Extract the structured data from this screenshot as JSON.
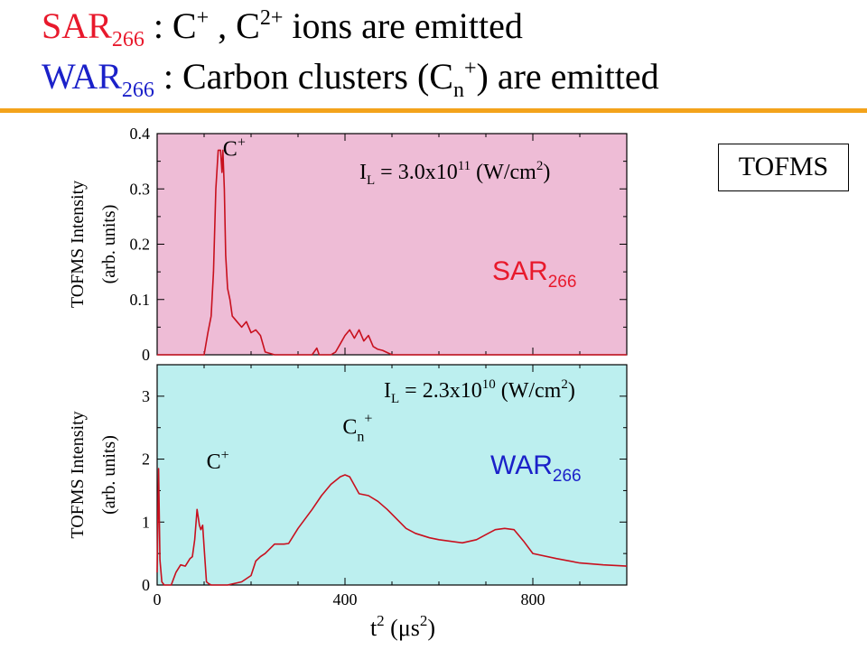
{
  "header": {
    "line1": {
      "label": "SAR",
      "sub": "266",
      "rest": " :  C",
      "sup1": "+",
      "mid": " , C",
      "sup2": "2+",
      "tail": " ions are emitted"
    },
    "line2": {
      "label": "WAR",
      "sub": "266",
      "rest": "  :  Carbon clusters (C",
      "subn": "n",
      "sup": "+",
      "tail": ") are emitted"
    }
  },
  "badge": "TOFMS",
  "colors": {
    "sar": "#e8192c",
    "war": "#1b21c9",
    "rule": "#f3a31b",
    "topBg": "#eebcd6",
    "bottomBg": "#bcefef",
    "trace": "#c8101e"
  },
  "chart_data": [
    {
      "type": "line",
      "label": "SAR",
      "label_sub": "266",
      "intensity_prefix": "I",
      "intensity_sub": "L",
      "intensity_text": " = 3.0x10",
      "intensity_exp": "11",
      "intensity_unit": " (W/cm",
      "intensity_unit_exp": "2",
      "intensity_close": ")",
      "annotations": [
        {
          "text": "C",
          "sup": "+",
          "x": 140,
          "y": 0.36
        }
      ],
      "ylabel_line1": "TOFMS Intensity",
      "ylabel_line2": "(arb. units)",
      "xlim": [
        0,
        1000
      ],
      "ylim": [
        0,
        0.4
      ],
      "yticks": [
        0,
        0.1,
        0.2,
        0.3,
        0.4
      ],
      "yticklabels": [
        "0",
        "0.1",
        "0.2",
        "0.3",
        "0.4"
      ],
      "x": [
        0,
        100,
        108,
        115,
        120,
        125,
        130,
        135,
        138,
        140,
        143,
        146,
        150,
        155,
        160,
        165,
        170,
        180,
        190,
        200,
        210,
        220,
        230,
        250,
        300,
        330,
        340,
        345,
        355,
        370,
        380,
        390,
        400,
        410,
        420,
        430,
        440,
        450,
        460,
        470,
        480,
        500,
        600,
        700,
        800,
        900,
        1000
      ],
      "y": [
        0,
        0,
        0.04,
        0.07,
        0.15,
        0.3,
        0.37,
        0.37,
        0.33,
        0.37,
        0.3,
        0.18,
        0.12,
        0.1,
        0.07,
        0.065,
        0.06,
        0.05,
        0.06,
        0.04,
        0.045,
        0.035,
        0.005,
        0,
        0,
        0,
        0.012,
        0,
        0,
        0,
        0.005,
        0.02,
        0.035,
        0.045,
        0.03,
        0.045,
        0.025,
        0.035,
        0.015,
        0.01,
        0.008,
        0,
        0,
        0,
        0,
        0,
        0
      ]
    },
    {
      "type": "line",
      "label": "WAR",
      "label_sub": "266",
      "intensity_prefix": "I",
      "intensity_sub": "L",
      "intensity_text": " = 2.3x10",
      "intensity_exp": "10",
      "intensity_unit": " (W/cm",
      "intensity_unit_exp": "2",
      "intensity_close": ")",
      "annotations": [
        {
          "text": "C",
          "sub": "n",
          "sup": "+",
          "x": 395,
          "y": 2.4
        },
        {
          "text": "C",
          "sup": "+",
          "x": 105,
          "y": 1.85
        }
      ],
      "ylabel_line1": "TOFMS Intensity",
      "ylabel_line2": "(arb. units)",
      "xlabel": "t",
      "xlabel_sup": "2",
      "xlabel_unit": " (μs",
      "xlabel_unit_sup": "2",
      "xlabel_close": ")",
      "xlim": [
        0,
        1000
      ],
      "ylim": [
        0,
        3.5
      ],
      "xticks": [
        0,
        400,
        800
      ],
      "xticklabels": [
        "0",
        "400",
        "800"
      ],
      "yticks": [
        0,
        1,
        2,
        3
      ],
      "yticklabels": [
        "0",
        "1",
        "2",
        "3"
      ],
      "x": [
        0,
        3,
        6,
        10,
        15,
        30,
        40,
        50,
        60,
        70,
        75,
        80,
        85,
        90,
        93,
        97,
        100,
        105,
        110,
        115,
        120,
        150,
        180,
        200,
        210,
        220,
        230,
        250,
        270,
        280,
        300,
        330,
        350,
        370,
        390,
        400,
        410,
        430,
        450,
        470,
        490,
        510,
        530,
        550,
        580,
        600,
        650,
        680,
        700,
        720,
        740,
        760,
        780,
        800,
        850,
        900,
        950,
        1000
      ],
      "y": [
        0.2,
        1.85,
        0.4,
        0.05,
        0,
        0,
        0.2,
        0.32,
        0.3,
        0.42,
        0.45,
        0.72,
        1.2,
        0.95,
        0.88,
        0.95,
        0.6,
        0.05,
        0.02,
        0,
        0,
        0,
        0.05,
        0.15,
        0.38,
        0.45,
        0.5,
        0.65,
        0.65,
        0.66,
        0.9,
        1.2,
        1.42,
        1.6,
        1.72,
        1.75,
        1.72,
        1.45,
        1.42,
        1.33,
        1.2,
        1.05,
        0.9,
        0.82,
        0.75,
        0.72,
        0.67,
        0.72,
        0.8,
        0.88,
        0.9,
        0.88,
        0.7,
        0.5,
        0.42,
        0.35,
        0.32,
        0.3
      ]
    }
  ]
}
